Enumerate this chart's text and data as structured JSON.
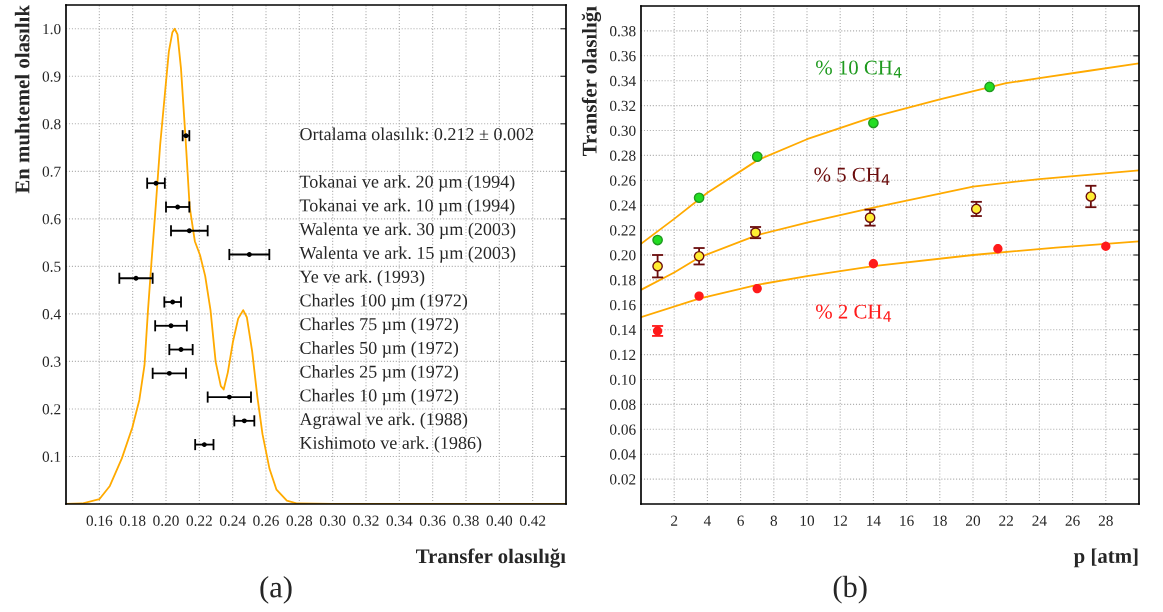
{
  "chart_data": [
    {
      "type": "line",
      "title": "(a)",
      "xlabel": "Transfer olasılığı",
      "ylabel": "En muhtemel olasılık",
      "xlim": [
        0.14,
        0.44
      ],
      "ylim": [
        0,
        1.05
      ],
      "xticks": [
        0.16,
        0.18,
        {
          "value": 0.2,
          "label": "0.20"
        },
        0.22,
        0.24,
        0.26,
        0.28,
        {
          "value": 0.3,
          "label": "0.30"
        },
        0.32,
        0.34,
        0.36,
        0.38,
        {
          "value": 0.4,
          "label": "0.40"
        },
        0.42
      ],
      "yticks": [
        0.1,
        0.2,
        0.3,
        0.4,
        0.5,
        0.6,
        0.7,
        0.8,
        0.9,
        {
          "value": 1,
          "label": "1.0"
        }
      ],
      "grid": true,
      "series": [
        {
          "color": "#ffaa00",
          "marker": "none",
          "x": [
            0.14,
            0.1496,
            0.16,
            0.1663,
            0.1735,
            0.1798,
            0.184,
            0.1871,
            0.1892,
            0.1913,
            0.1938,
            0.1965,
            0.1992,
            0.2017,
            0.2038,
            0.2052,
            0.2069,
            0.209,
            0.2117,
            0.2142,
            0.2173,
            0.2204,
            0.2235,
            0.2267,
            0.2298,
            0.2329,
            0.2346,
            0.2371,
            0.2402,
            0.2433,
            0.2463,
            0.2485,
            0.2517,
            0.2548,
            0.2579,
            0.2621,
            0.2663,
            0.2725,
            0.2788,
            0.3,
            0.44
          ],
          "values": [
            0,
            0.001,
            0.01,
            0.038,
            0.096,
            0.161,
            0.219,
            0.292,
            0.408,
            0.51,
            0.625,
            0.756,
            0.858,
            0.952,
            0.992,
            1.0,
            0.988,
            0.916,
            0.771,
            0.625,
            0.553,
            0.524,
            0.48,
            0.408,
            0.299,
            0.248,
            0.241,
            0.277,
            0.342,
            0.39,
            0.408,
            0.393,
            0.321,
            0.226,
            0.147,
            0.074,
            0.03,
            0.007,
            0.001,
            0,
            0
          ]
        },
        {
          "type": "scatter",
          "color": "#000000",
          "marker": "circle",
          "x": [
            0.212,
            0.194,
            0.207,
            0.214,
            0.25,
            0.182,
            0.204,
            0.203,
            0.209,
            0.202,
            0.238,
            0.247,
            0.223
          ],
          "values": [
            0.775,
            0.675,
            0.625,
            0.575,
            0.525,
            0.475,
            0.425,
            0.375,
            0.325,
            0.275,
            0.225,
            0.175,
            0.125
          ],
          "xerrors": [
            0.002,
            0.0053,
            0.007,
            0.011,
            0.012,
            0.01,
            0.005,
            0.0095,
            0.007,
            0.01,
            0.013,
            0.006,
            0.0055
          ]
        }
      ],
      "annotations": [
        "Ortalama olasılık: 0.212 ± 0.002",
        "Tokanai ve ark. 20 µm (1994)",
        "Tokanai ve ark. 10 µm (1994)",
        "Walenta ve ark. 30 µm (2003)",
        "Walenta ve ark. 15 µm (2003)",
        "Ye ve ark. (1993)",
        "Charles 100 µm (1972)",
        "Charles 75 µm (1972)",
        "Charles 50 µm (1972)",
        "Charles 25 µm (1972)",
        "Charles 10 µm (1972)",
        "Agrawal ve ark. (1988)",
        "Kishimoto ve ark. (1986)"
      ]
    },
    {
      "type": "scatter",
      "title": "(b)",
      "xlabel": "p [atm]",
      "ylabel": "Transfer olasılığı",
      "xlim": [
        0,
        30
      ],
      "ylim": [
        0,
        0.4
      ],
      "xticks": [
        2,
        4,
        6,
        8,
        10,
        12,
        14,
        16,
        18,
        20,
        22,
        24,
        26,
        28
      ],
      "yticks": [
        0.02,
        0.04,
        0.06,
        0.08,
        {
          "value": 0.1,
          "label": "0.10"
        },
        0.12,
        0.14,
        0.16,
        0.18,
        {
          "value": 0.2,
          "label": "0.20"
        },
        0.22,
        0.24,
        0.26,
        0.28,
        {
          "value": 0.3,
          "label": "0.30"
        },
        0.32,
        0.34,
        0.36,
        0.38
      ],
      "grid": true,
      "series": [
        {
          "type": "line",
          "color": "#ffaa00",
          "marker": "none",
          "x": [
            0,
            2,
            4,
            7,
            10,
            14,
            18,
            22,
            24,
            27,
            30
          ],
          "values": [
            0.209,
            0.229,
            0.25,
            0.276,
            0.293,
            0.311,
            0.325,
            0.338,
            0.342,
            0.348,
            0.354
          ]
        },
        {
          "type": "line",
          "color": "#ffaa00",
          "marker": "none",
          "x": [
            0,
            2,
            3.5,
            7,
            10,
            14,
            20,
            24,
            30
          ],
          "values": [
            0.172,
            0.186,
            0.198,
            0.216,
            0.226,
            0.238,
            0.255,
            0.261,
            0.268
          ]
        },
        {
          "type": "line",
          "color": "#ffaa00",
          "marker": "none",
          "x": [
            0,
            3.5,
            7,
            10,
            14,
            20,
            25,
            30
          ],
          "values": [
            0.15,
            0.165,
            0.176,
            0.183,
            0.191,
            0.2,
            0.206,
            0.211
          ]
        },
        {
          "name": "% 10 CH$_{4}$",
          "color": "#1f9a1f",
          "marker": "circle",
          "x": [
            1,
            3.5,
            7,
            14,
            21
          ],
          "values": [
            0.212,
            0.246,
            0.279,
            0.306,
            0.335
          ]
        },
        {
          "name": "% 5 CH$_{4}$",
          "color": "#6b0d0d",
          "marker": "circle",
          "x": [
            1,
            3.5,
            6.9,
            13.8,
            20.2,
            27.1
          ],
          "values": [
            0.191,
            0.199,
            0.218,
            0.23,
            0.237,
            0.247
          ],
          "errors": [
            0.009,
            0.0066,
            0.0045,
            0.0064,
            0.0057,
            0.0086
          ]
        },
        {
          "name": "% 2 CH$_{4}$",
          "color": "#ff1a1a",
          "marker": "circle",
          "x": [
            1,
            3.5,
            7,
            14,
            21.5,
            28
          ],
          "values": [
            0.139,
            0.167,
            0.173,
            0.193,
            0.205,
            0.207
          ],
          "errors": [
            0.004,
            null,
            null,
            null,
            null,
            null
          ]
        }
      ]
    }
  ]
}
